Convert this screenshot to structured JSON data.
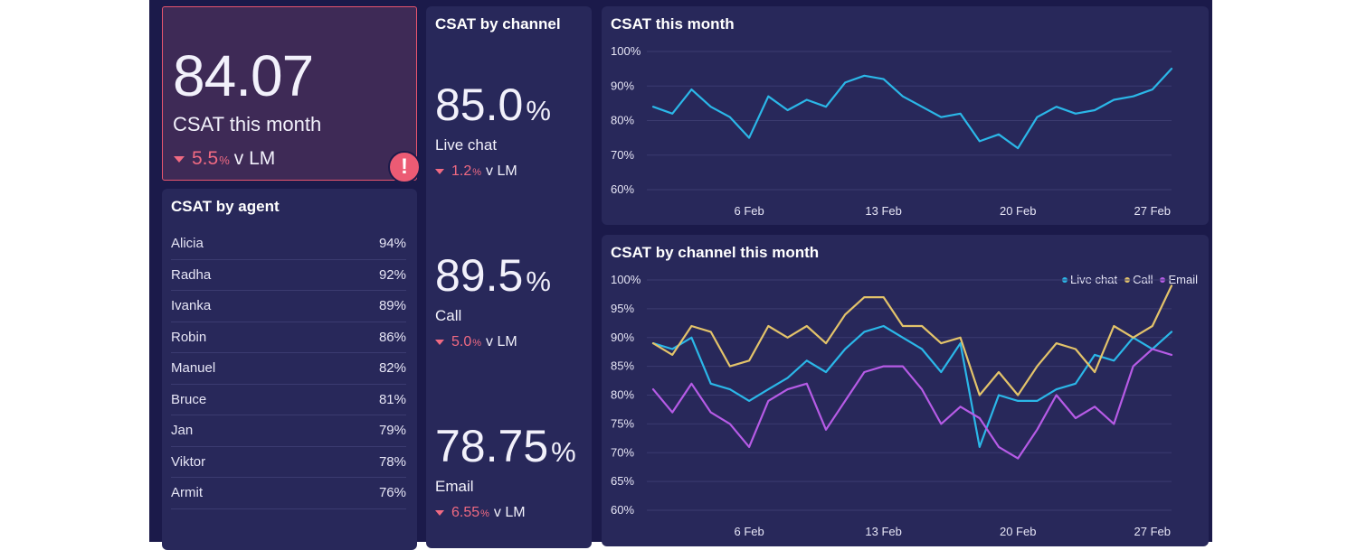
{
  "kpi": {
    "value": "84.07",
    "label": "CSAT this month",
    "delta": "5.5",
    "delta_unit": "%",
    "delta_suffix": "v LM",
    "alert_symbol": "!",
    "alert_color": "#ec5b74"
  },
  "agents": {
    "title": "CSAT by agent",
    "rows": [
      {
        "name": "Alicia",
        "value": "94%"
      },
      {
        "name": "Radha",
        "value": "92%"
      },
      {
        "name": "Ivanka",
        "value": "89%"
      },
      {
        "name": "Robin",
        "value": "86%"
      },
      {
        "name": "Manuel",
        "value": "82%"
      },
      {
        "name": "Bruce",
        "value": "81%"
      },
      {
        "name": "Jan",
        "value": "79%"
      },
      {
        "name": "Viktor",
        "value": "78%"
      },
      {
        "name": "Armit",
        "value": "76%"
      }
    ]
  },
  "channels": {
    "title": "CSAT by channel",
    "items": [
      {
        "value": "85.0",
        "unit": "%",
        "label": "Live chat",
        "delta": "1.2",
        "delta_unit": "%",
        "delta_suffix": "v LM"
      },
      {
        "value": "89.5",
        "unit": "%",
        "label": "Call",
        "delta": "5.0",
        "delta_unit": "%",
        "delta_suffix": "v LM"
      },
      {
        "value": "78.75",
        "unit": "%",
        "label": "Email",
        "delta": "6.55",
        "delta_unit": "%",
        "delta_suffix": "v LM"
      }
    ]
  },
  "colors": {
    "negative": "#f06a82",
    "live_chat": "#2bb7e8",
    "call": "#e3c36a",
    "email": "#b65be6",
    "grid": "#3b3b70"
  },
  "chart_data": [
    {
      "type": "line",
      "title": "CSAT this month",
      "x": [
        1,
        2,
        3,
        4,
        5,
        6,
        7,
        8,
        9,
        10,
        11,
        12,
        13,
        14,
        15,
        16,
        17,
        18,
        19,
        20,
        21,
        22,
        23,
        24,
        25,
        26,
        27,
        28
      ],
      "x_ticks": [
        6,
        13,
        20,
        27
      ],
      "x_tick_labels": [
        "6 Feb",
        "13 Feb",
        "20 Feb",
        "27 Feb"
      ],
      "ylim": [
        60,
        100
      ],
      "y_ticks": [
        60,
        70,
        80,
        90,
        100
      ],
      "y_tick_labels": [
        "60%",
        "70%",
        "80%",
        "90%",
        "100%"
      ],
      "grid": true,
      "series": [
        {
          "color": "#2bb7e8",
          "values": [
            84,
            82,
            89,
            84,
            81,
            75,
            87,
            83,
            86,
            84,
            91,
            93,
            92,
            87,
            84,
            81,
            82,
            74,
            76,
            72,
            81,
            84,
            82,
            83,
            86,
            87,
            89,
            95
          ]
        }
      ]
    },
    {
      "type": "line",
      "title": "CSAT by channel this month",
      "x": [
        1,
        2,
        3,
        4,
        5,
        6,
        7,
        8,
        9,
        10,
        11,
        12,
        13,
        14,
        15,
        16,
        17,
        18,
        19,
        20,
        21,
        22,
        23,
        24,
        25,
        26,
        27,
        28
      ],
      "x_ticks": [
        6,
        13,
        20,
        27
      ],
      "x_tick_labels": [
        "6 Feb",
        "13 Feb",
        "20 Feb",
        "27 Feb"
      ],
      "ylim": [
        60,
        100
      ],
      "y_ticks": [
        60,
        65,
        70,
        75,
        80,
        85,
        90,
        95,
        100
      ],
      "y_tick_labels": [
        "60%",
        "65%",
        "70%",
        "75%",
        "80%",
        "85%",
        "90%",
        "95%",
        "100%"
      ],
      "grid": true,
      "legend": "top-right",
      "series": [
        {
          "name": "Live chat",
          "color": "#2bb7e8",
          "values": [
            89,
            88,
            90,
            82,
            81,
            79,
            81,
            83,
            86,
            84,
            88,
            91,
            92,
            90,
            88,
            84,
            89,
            71,
            80,
            79,
            79,
            81,
            82,
            87,
            86,
            90,
            88,
            91
          ]
        },
        {
          "name": "Call",
          "color": "#e3c36a",
          "values": [
            89,
            87,
            92,
            91,
            85,
            86,
            92,
            90,
            92,
            89,
            94,
            97,
            97,
            92,
            92,
            89,
            90,
            80,
            84,
            80,
            85,
            89,
            88,
            84,
            92,
            90,
            92,
            99
          ]
        },
        {
          "name": "Email",
          "color": "#b65be6",
          "values": [
            81,
            77,
            82,
            77,
            75,
            71,
            79,
            81,
            82,
            74,
            79,
            84,
            85,
            85,
            81,
            75,
            78,
            76,
            71,
            69,
            74,
            80,
            76,
            78,
            75,
            85,
            88,
            87
          ]
        }
      ]
    }
  ]
}
